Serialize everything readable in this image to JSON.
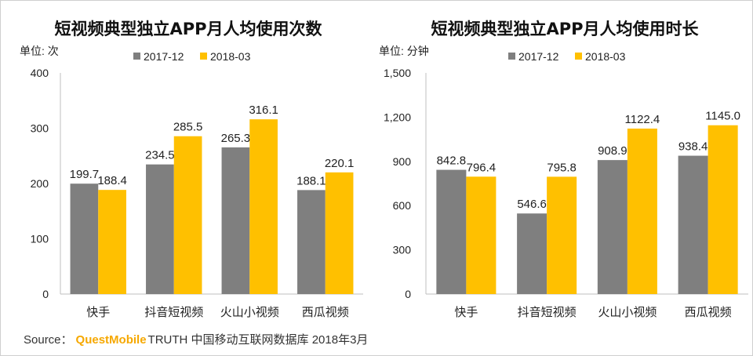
{
  "colors": {
    "series_2017": "#7f7f7f",
    "series_2018": "#ffc000",
    "axis": "#bfbfbf",
    "text": "#222222"
  },
  "source": {
    "label": "Source：",
    "brand": "QuestMobile",
    "text": "TRUTH 中国移动互联网数据库 2018年3月"
  },
  "chart_data": [
    {
      "type": "bar",
      "title": "短视频典型独立APP月人均使用次数",
      "unit": "单位: 次",
      "categories": [
        "快手",
        "抖音短视频",
        "火山小视频",
        "西瓜视频"
      ],
      "series": [
        {
          "name": "2017-12",
          "values": [
            199.7,
            234.5,
            265.3,
            188.1
          ]
        },
        {
          "name": "2018-03",
          "values": [
            188.4,
            285.5,
            316.1,
            220.1
          ]
        }
      ],
      "ylim": [
        0,
        400
      ],
      "yticks": [
        0,
        100,
        200,
        300,
        400
      ],
      "ytick_labels": [
        "0",
        "100",
        "200",
        "300",
        "400"
      ],
      "grid": false,
      "legend": "top"
    },
    {
      "type": "bar",
      "title": "短视频典型独立APP月人均使用时长",
      "unit": "单位: 分钟",
      "categories": [
        "快手",
        "抖音短视频",
        "火山小视频",
        "西瓜视频"
      ],
      "series": [
        {
          "name": "2017-12",
          "values": [
            842.8,
            546.6,
            908.9,
            938.4
          ]
        },
        {
          "name": "2018-03",
          "values": [
            796.4,
            795.8,
            1122.4,
            1145.0
          ]
        }
      ],
      "ylim": [
        0,
        1500
      ],
      "yticks": [
        0,
        300,
        600,
        900,
        1200,
        1500
      ],
      "ytick_labels": [
        "0",
        "300",
        "600",
        "900",
        "1,200",
        "1,500"
      ],
      "grid": false,
      "legend": "top"
    }
  ]
}
